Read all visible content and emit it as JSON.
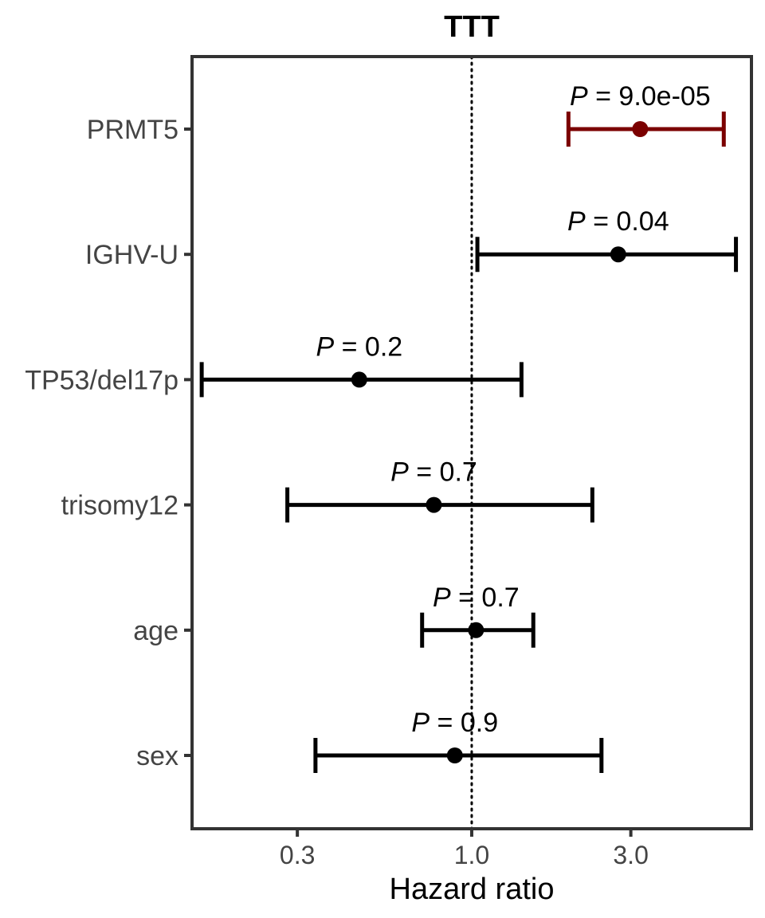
{
  "chart_data": {
    "type": "scatter",
    "subtype": "forest-plot",
    "title": "TTT",
    "xlabel": "Hazard ratio",
    "ylabel": "",
    "x_scale": "log",
    "xlim": [
      0.145,
      6.9
    ],
    "x_ticks": [
      0.3,
      1.0,
      3.0
    ],
    "x_tick_labels": [
      "0.3",
      "1.0",
      "3.0"
    ],
    "reference_line": 1.0,
    "grid": false,
    "rows": [
      {
        "label": "PRMT5",
        "hr": 3.2,
        "lower": 1.95,
        "upper": 5.7,
        "p_prefix": "P",
        "p_value": "= 9.0e-05",
        "color": "#7b0000"
      },
      {
        "label": "IGHV-U",
        "hr": 2.75,
        "lower": 1.04,
        "upper": 6.2,
        "p_prefix": "P",
        "p_value": "= 0.04",
        "color": "#000000"
      },
      {
        "label": "TP53/del17p",
        "hr": 0.46,
        "lower": 0.155,
        "upper": 1.41,
        "p_prefix": "P",
        "p_value": "= 0.2",
        "color": "#000000"
      },
      {
        "label": "trisomy12",
        "hr": 0.77,
        "lower": 0.28,
        "upper": 2.3,
        "p_prefix": "P",
        "p_value": "= 0.7",
        "color": "#000000"
      },
      {
        "label": "age",
        "hr": 1.03,
        "lower": 0.71,
        "upper": 1.53,
        "p_prefix": "P",
        "p_value": "= 0.7",
        "color": "#000000"
      },
      {
        "label": "sex",
        "hr": 0.89,
        "lower": 0.34,
        "upper": 2.45,
        "p_prefix": "P",
        "p_value": "= 0.9",
        "color": "#000000"
      }
    ]
  }
}
